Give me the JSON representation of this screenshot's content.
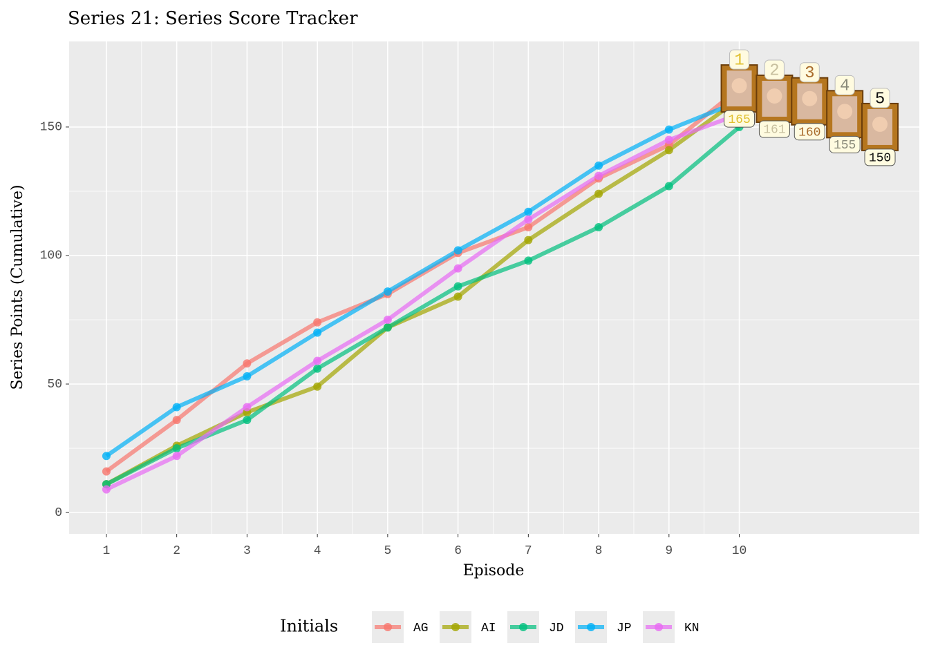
{
  "chart_data": {
    "type": "line",
    "title": "Series 21: Series Score Tracker",
    "x_label": "Episode",
    "y_label": "Series Points (Cumulative)",
    "legend_title": "Initials",
    "legend_position": "bottom",
    "grid": true,
    "x": [
      1,
      2,
      3,
      4,
      5,
      6,
      7,
      8,
      9,
      10
    ],
    "xlim": [
      0.47,
      12.56
    ],
    "xticks": [
      1,
      2,
      3,
      4,
      5,
      6,
      7,
      8,
      9,
      10
    ],
    "ylim": [
      -8.3,
      183.3
    ],
    "yticks": [
      0,
      50,
      100,
      150
    ],
    "series": [
      {
        "name": "AG",
        "color": "#F8766D",
        "values": [
          16,
          36,
          58,
          74,
          85,
          101,
          111,
          130,
          143,
          165
        ]
      },
      {
        "name": "AI",
        "color": "#A3A500",
        "values": [
          11,
          26,
          39,
          49,
          72,
          84,
          106,
          124,
          141,
          161
        ]
      },
      {
        "name": "JD",
        "color": "#00BF7D",
        "values": [
          11,
          25,
          36,
          56,
          72,
          88,
          98,
          111,
          127,
          150
        ]
      },
      {
        "name": "JP",
        "color": "#00B0F6",
        "values": [
          22,
          41,
          53,
          70,
          86,
          102,
          117,
          135,
          149,
          160
        ]
      },
      {
        "name": "KN",
        "color": "#E76BF3",
        "values": [
          9,
          22,
          41,
          59,
          75,
          95,
          114,
          131,
          145,
          155
        ]
      }
    ],
    "leaderboard": [
      {
        "rank": 1,
        "score": 165,
        "color": "#e0c030"
      },
      {
        "rank": 2,
        "score": 161,
        "color": "#c8c0a0"
      },
      {
        "rank": 3,
        "score": 160,
        "color": "#a86a2a"
      },
      {
        "rank": 4,
        "score": 155,
        "color": "#8a8a7a"
      },
      {
        "rank": 5,
        "score": 150,
        "color": "#111111"
      }
    ]
  }
}
